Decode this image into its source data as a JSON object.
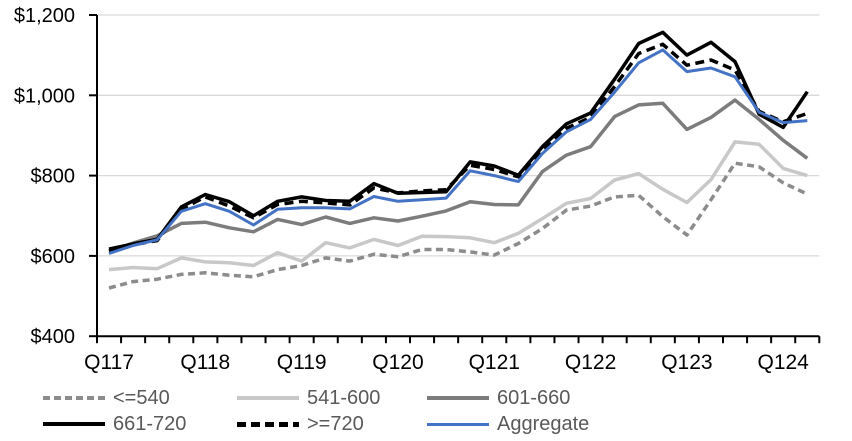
{
  "chart_data": {
    "type": "line",
    "title": "",
    "grid": "horizontal-on",
    "legend_position": "bottom",
    "colors": {
      "le540": "#8C8C8C",
      "s541_600": "#C8C8C8",
      "s601_660": "#7C7C7C",
      "s661_720": "#000000",
      "ge720": "#000000",
      "aggregate": "#4472C4",
      "gridline": "#D9D9D9",
      "axis": "#000000",
      "legend_text": "#595959"
    },
    "y_axis": {
      "min": 400,
      "max": 1200,
      "step": 200,
      "tick_labels": [
        "$400",
        "$600",
        "$800",
        "$1,000",
        "$1,200"
      ]
    },
    "x_axis": {
      "tick_labels": [
        "Q117",
        "Q118",
        "Q119",
        "Q120",
        "Q121",
        "Q122",
        "Q123",
        "Q124"
      ],
      "quarters": [
        "Q117",
        "Q217",
        "Q317",
        "Q417",
        "Q118",
        "Q218",
        "Q318",
        "Q418",
        "Q119",
        "Q219",
        "Q319",
        "Q419",
        "Q120",
        "Q220",
        "Q320",
        "Q420",
        "Q121",
        "Q221",
        "Q321",
        "Q421",
        "Q122",
        "Q222",
        "Q322",
        "Q422",
        "Q123",
        "Q223",
        "Q323",
        "Q423",
        "Q124",
        "Q224"
      ]
    },
    "series": [
      {
        "name": "<=540",
        "color": "#8C8C8C",
        "style": "dashed",
        "dash": "7 4.5",
        "width": 3.5,
        "values": [
          520,
          536,
          542,
          554,
          558,
          552,
          548,
          566,
          576,
          595,
          587,
          604,
          598,
          616,
          616,
          610,
          602,
          631,
          668,
          714,
          724,
          747,
          751,
          698,
          652,
          740,
          831,
          822,
          782,
          754
        ]
      },
      {
        "name": "541-600",
        "color": "#C8C8C8",
        "style": "solid",
        "dash": "",
        "width": 3.5,
        "values": [
          566,
          571,
          568,
          595,
          585,
          583,
          576,
          608,
          587,
          633,
          620,
          641,
          626,
          649,
          648,
          645,
          633,
          656,
          693,
          731,
          743,
          789,
          805,
          766,
          733,
          790,
          884,
          878,
          818,
          800
        ]
      },
      {
        "name": "601-660",
        "color": "#7C7C7C",
        "style": "solid",
        "dash": "",
        "width": 3.5,
        "values": [
          612,
          632,
          650,
          681,
          684,
          670,
          660,
          691,
          678,
          697,
          681,
          695,
          687,
          699,
          712,
          735,
          728,
          727,
          810,
          851,
          872,
          947,
          976,
          980,
          915,
          945,
          988,
          940,
          888,
          843
        ]
      },
      {
        "name": "661-720",
        "color": "#000000",
        "style": "solid",
        "dash": "",
        "width": 3.5,
        "values": [
          617,
          630,
          641,
          722,
          753,
          735,
          700,
          736,
          747,
          738,
          736,
          780,
          756,
          758,
          760,
          834,
          824,
          801,
          872,
          929,
          956,
          1040,
          1129,
          1157,
          1100,
          1132,
          1084,
          953,
          920,
          1009
        ]
      },
      {
        "name": ">=720",
        "color": "#000000",
        "style": "dashed",
        "dash": "9 5.5",
        "width": 3.5,
        "values": [
          612,
          628,
          638,
          716,
          747,
          724,
          695,
          728,
          736,
          732,
          727,
          769,
          757,
          762,
          765,
          826,
          815,
          797,
          864,
          918,
          945,
          1022,
          1104,
          1127,
          1075,
          1088,
          1063,
          960,
          934,
          955
        ]
      },
      {
        "name": "Aggregate",
        "color": "#4472C4",
        "style": "solid",
        "dash": "",
        "width": 3,
        "values": [
          606,
          626,
          640,
          711,
          730,
          711,
          677,
          716,
          720,
          720,
          717,
          748,
          736,
          740,
          744,
          812,
          800,
          785,
          855,
          909,
          940,
          1008,
          1081,
          1113,
          1059,
          1068,
          1046,
          958,
          932,
          937
        ]
      }
    ]
  }
}
